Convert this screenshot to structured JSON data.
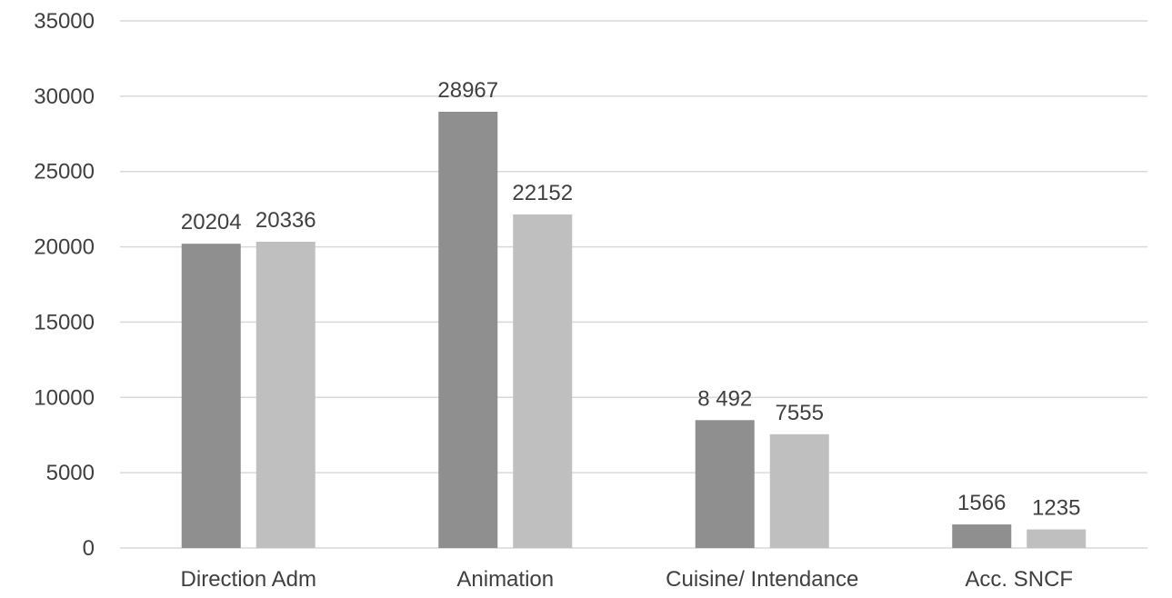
{
  "chart_data": {
    "type": "bar",
    "title": "",
    "xlabel": "",
    "ylabel": "",
    "ylim": [
      0,
      35000
    ],
    "yticks": [
      0,
      5000,
      10000,
      15000,
      20000,
      25000,
      30000,
      35000
    ],
    "grid": true,
    "categories": [
      "Direction Adm",
      "Animation",
      "Cuisine/ Intendance",
      "Acc. SNCF"
    ],
    "series": [
      {
        "values": [
          20204,
          28967,
          8492,
          1566
        ],
        "labels": [
          "20204",
          "28967",
          "8 492",
          "1566"
        ],
        "color": "#8f8f8f"
      },
      {
        "values": [
          20336,
          22152,
          7555,
          1235
        ],
        "labels": [
          "20336",
          "22152",
          "7555",
          "1235"
        ],
        "color": "#bfbfbf"
      }
    ]
  }
}
